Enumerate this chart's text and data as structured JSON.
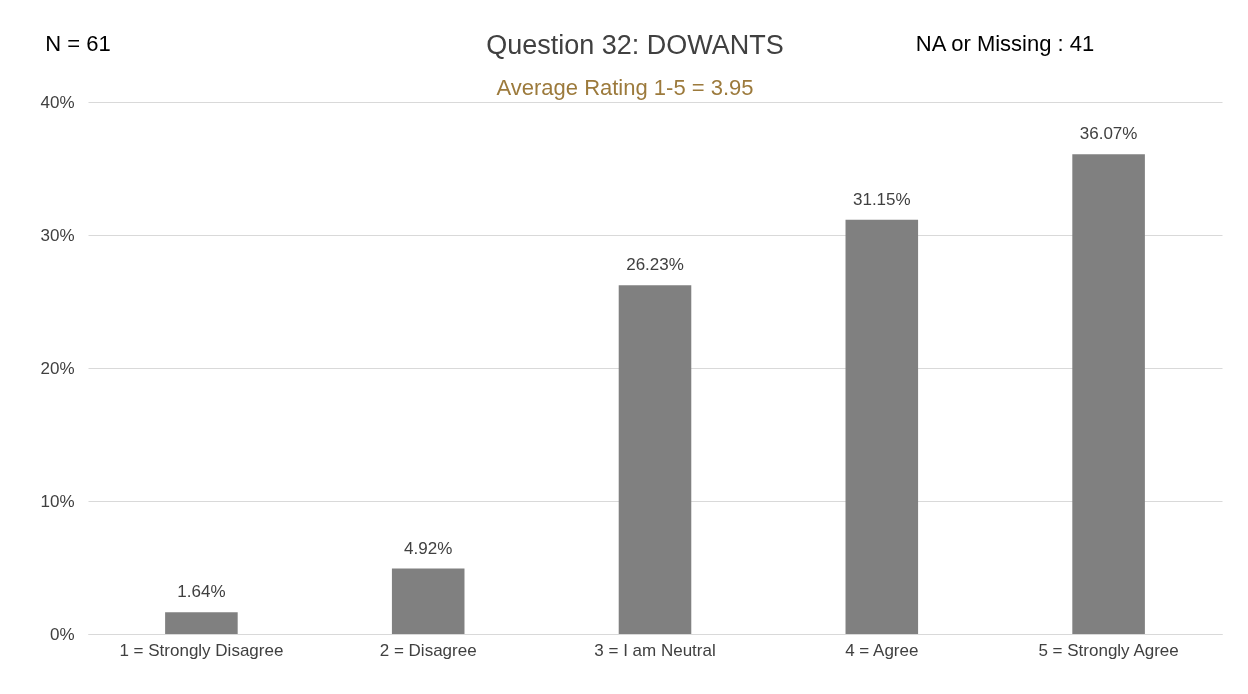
{
  "chart_data": {
    "type": "bar",
    "title": "Question 32: DOWANTS",
    "subtitle": "Average Rating 1-5 = 3.95",
    "annotations": [
      "N = 61",
      "NA or Missing : 41"
    ],
    "categories": [
      "1 = Strongly Disagree",
      "2 = Disagree",
      "3 = I am Neutral",
      "4 = Agree",
      "5 = Strongly Agree"
    ],
    "values": [
      1.64,
      4.92,
      26.23,
      31.15,
      36.07
    ],
    "value_labels": [
      "1.64%",
      "4.92%",
      "26.23%",
      "31.15%",
      "36.07%"
    ],
    "color": "#808080",
    "ylim": [
      0,
      40
    ],
    "yticks": [
      {
        "value": 0,
        "label": "0%"
      },
      {
        "value": 10,
        "label": "10%"
      },
      {
        "value": 20,
        "label": "20%"
      },
      {
        "value": 30,
        "label": "30%"
      },
      {
        "value": 40,
        "label": "40%"
      }
    ],
    "grid": "y"
  }
}
